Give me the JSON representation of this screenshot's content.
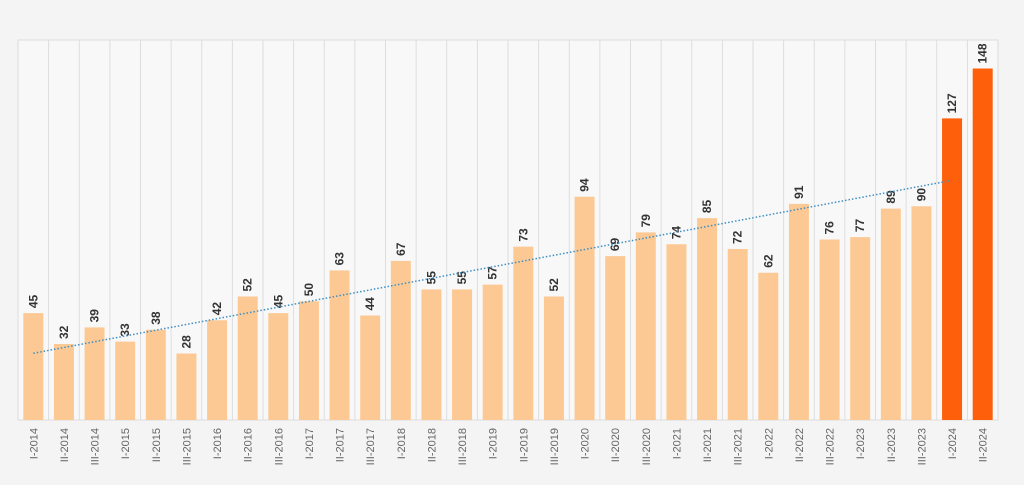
{
  "chart_data": {
    "type": "bar",
    "categories": [
      "I-2014",
      "II-2014",
      "III-2014",
      "I-2015",
      "II-2015",
      "III-2015",
      "I-2016",
      "II-2016",
      "III-2016",
      "I-2017",
      "II-2017",
      "III-2017",
      "I-2018",
      "II-2018",
      "III-2018",
      "I-2019",
      "II-2019",
      "III-2019",
      "I-2020",
      "II-2020",
      "III-2020",
      "I-2021",
      "II-2021",
      "III-2021",
      "I-2022",
      "II-2022",
      "III-2022",
      "I-2023",
      "II-2023",
      "III-2023",
      "I-2024",
      "II-2024"
    ],
    "values": [
      45,
      32,
      39,
      33,
      38,
      28,
      42,
      52,
      45,
      50,
      63,
      44,
      67,
      55,
      55,
      57,
      73,
      52,
      94,
      69,
      79,
      74,
      85,
      72,
      62,
      91,
      76,
      77,
      89,
      90,
      127,
      148
    ],
    "highlight": [
      false,
      false,
      false,
      false,
      false,
      false,
      false,
      false,
      false,
      false,
      false,
      false,
      false,
      false,
      false,
      false,
      false,
      false,
      false,
      false,
      false,
      false,
      false,
      false,
      false,
      false,
      false,
      false,
      false,
      false,
      true,
      true
    ],
    "ylim": [
      0,
      160
    ],
    "title": "",
    "xlabel": "",
    "ylabel": "",
    "grid": "vertical",
    "trendline": {
      "type": "linear",
      "style": "dotted"
    },
    "colors": {
      "bar": "#fcc994",
      "highlight": "#fd5f0a",
      "trend": "#3d8fc4",
      "grid": "#dddddd",
      "label": "#333333",
      "tick": "#666666",
      "background": "#f4f4f4",
      "plot_background": "#f8f8f8"
    }
  }
}
